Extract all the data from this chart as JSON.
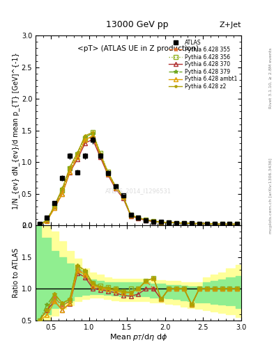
{
  "title_top": "13000 GeV pp",
  "title_right": "Z+Jet",
  "plot_title": "<pT> (ATLAS UE in Z production)",
  "xlabel": "Mean p_{T}/dη dφ",
  "ylabel_main": "1/N_{ev} dN_{ev}/d mean p_{T} [GeV]^{-1}",
  "ylabel_ratio": "Ratio to ATLAS",
  "right_label_top": "Rivet 3.1.10, ≥ 2.8M events",
  "right_label_bot": "mcplots.cern.ch [arXiv:1306.3436]",
  "watermark": "ATLAS_2014_I1296531",
  "xlim": [
    0.3,
    3.0
  ],
  "ylim_main": [
    0.0,
    3.0
  ],
  "ylim_ratio": [
    0.5,
    2.0
  ],
  "x_data": [
    0.35,
    0.45,
    0.55,
    0.65,
    0.75,
    0.85,
    0.95,
    1.05,
    1.15,
    1.25,
    1.35,
    1.45,
    1.55,
    1.65,
    1.75,
    1.85,
    1.95,
    2.05,
    2.15,
    2.25,
    2.35,
    2.45,
    2.55,
    2.65,
    2.75,
    2.85,
    2.95
  ],
  "atlas_y": [
    0.02,
    0.12,
    0.35,
    0.75,
    1.1,
    0.84,
    1.1,
    1.35,
    1.1,
    0.83,
    0.62,
    0.48,
    0.17,
    0.12,
    0.08,
    0.06,
    0.06,
    0.05,
    0.04,
    0.04,
    0.04,
    0.03,
    0.03,
    0.02,
    0.02,
    0.02,
    0.02
  ],
  "atlas_yerr": [
    0.005,
    0.01,
    0.02,
    0.04,
    0.05,
    0.04,
    0.05,
    0.06,
    0.05,
    0.04,
    0.03,
    0.02,
    0.01,
    0.008,
    0.006,
    0.005,
    0.005,
    0.004,
    0.003,
    0.003,
    0.003,
    0.002,
    0.002,
    0.002,
    0.002,
    0.002,
    0.002
  ],
  "py355_y": [
    0.01,
    0.08,
    0.3,
    0.55,
    0.88,
    1.1,
    1.35,
    1.4,
    1.1,
    0.82,
    0.6,
    0.45,
    0.16,
    0.12,
    0.09,
    0.06,
    0.05,
    0.05,
    0.04,
    0.04,
    0.03,
    0.03,
    0.03,
    0.02,
    0.02,
    0.02,
    0.02
  ],
  "py356_y": [
    0.01,
    0.08,
    0.3,
    0.55,
    0.9,
    1.12,
    1.38,
    1.48,
    1.15,
    0.85,
    0.62,
    0.46,
    0.17,
    0.12,
    0.09,
    0.07,
    0.05,
    0.05,
    0.04,
    0.04,
    0.03,
    0.03,
    0.03,
    0.02,
    0.02,
    0.02,
    0.02
  ],
  "py370_y": [
    0.01,
    0.08,
    0.28,
    0.5,
    0.84,
    1.05,
    1.3,
    1.36,
    1.08,
    0.8,
    0.58,
    0.43,
    0.15,
    0.11,
    0.08,
    0.06,
    0.05,
    0.05,
    0.04,
    0.04,
    0.03,
    0.03,
    0.03,
    0.02,
    0.02,
    0.02,
    0.02
  ],
  "py379_y": [
    0.01,
    0.09,
    0.32,
    0.58,
    0.92,
    1.15,
    1.4,
    1.45,
    1.12,
    0.83,
    0.61,
    0.46,
    0.16,
    0.12,
    0.09,
    0.07,
    0.05,
    0.05,
    0.04,
    0.04,
    0.03,
    0.03,
    0.03,
    0.02,
    0.02,
    0.02,
    0.02
  ],
  "pyambt1_y": [
    0.01,
    0.07,
    0.28,
    0.5,
    0.85,
    1.08,
    1.35,
    1.42,
    1.12,
    0.82,
    0.6,
    0.45,
    0.16,
    0.12,
    0.09,
    0.07,
    0.05,
    0.05,
    0.04,
    0.04,
    0.03,
    0.03,
    0.03,
    0.02,
    0.02,
    0.02,
    0.02
  ],
  "pyz2_y": [
    0.01,
    0.08,
    0.32,
    0.58,
    0.92,
    1.15,
    1.42,
    1.47,
    1.13,
    0.84,
    0.62,
    0.46,
    0.16,
    0.12,
    0.09,
    0.07,
    0.05,
    0.05,
    0.04,
    0.04,
    0.03,
    0.03,
    0.03,
    0.02,
    0.02,
    0.02,
    0.02
  ],
  "color_355": "#e07030",
  "color_356": "#90b020",
  "color_370": "#b03030",
  "color_379": "#70a820",
  "color_ambt1": "#e0a000",
  "color_z2": "#b0a000",
  "band_inner_color": "#90ee90",
  "band_outer_color": "#ffff99",
  "x_band": [
    0.3,
    0.45,
    0.55,
    0.65,
    0.75,
    0.85,
    0.95,
    1.05,
    1.15,
    1.25,
    1.35,
    1.45,
    1.55,
    1.65,
    1.75,
    1.85,
    1.95,
    2.05,
    2.15,
    2.25,
    2.35,
    2.45,
    2.55,
    2.65,
    2.75,
    2.85,
    3.0
  ],
  "inner_band_lo": [
    0.5,
    0.6,
    0.7,
    0.78,
    0.82,
    0.88,
    0.9,
    0.92,
    0.92,
    0.9,
    0.89,
    0.88,
    0.88,
    0.88,
    0.88,
    0.86,
    0.86,
    0.85,
    0.84,
    0.82,
    0.8,
    0.78,
    0.78,
    0.76,
    0.75,
    0.74,
    0.7
  ],
  "inner_band_hi": [
    2.5,
    1.8,
    1.6,
    1.5,
    1.4,
    1.3,
    1.18,
    1.15,
    1.12,
    1.1,
    1.1,
    1.1,
    1.1,
    1.1,
    1.1,
    1.08,
    1.08,
    1.06,
    1.06,
    1.05,
    1.04,
    1.04,
    1.1,
    1.12,
    1.15,
    1.18,
    1.2
  ],
  "outer_band_lo": [
    0.35,
    0.48,
    0.58,
    0.68,
    0.74,
    0.8,
    0.84,
    0.86,
    0.86,
    0.84,
    0.82,
    0.8,
    0.8,
    0.8,
    0.8,
    0.78,
    0.78,
    0.76,
    0.75,
    0.72,
    0.7,
    0.68,
    0.66,
    0.64,
    0.62,
    0.6,
    0.55
  ],
  "outer_band_hi": [
    3.0,
    2.2,
    1.9,
    1.75,
    1.6,
    1.48,
    1.32,
    1.26,
    1.22,
    1.18,
    1.16,
    1.16,
    1.16,
    1.16,
    1.16,
    1.14,
    1.14,
    1.12,
    1.12,
    1.1,
    1.1,
    1.1,
    1.18,
    1.22,
    1.26,
    1.32,
    1.38
  ]
}
